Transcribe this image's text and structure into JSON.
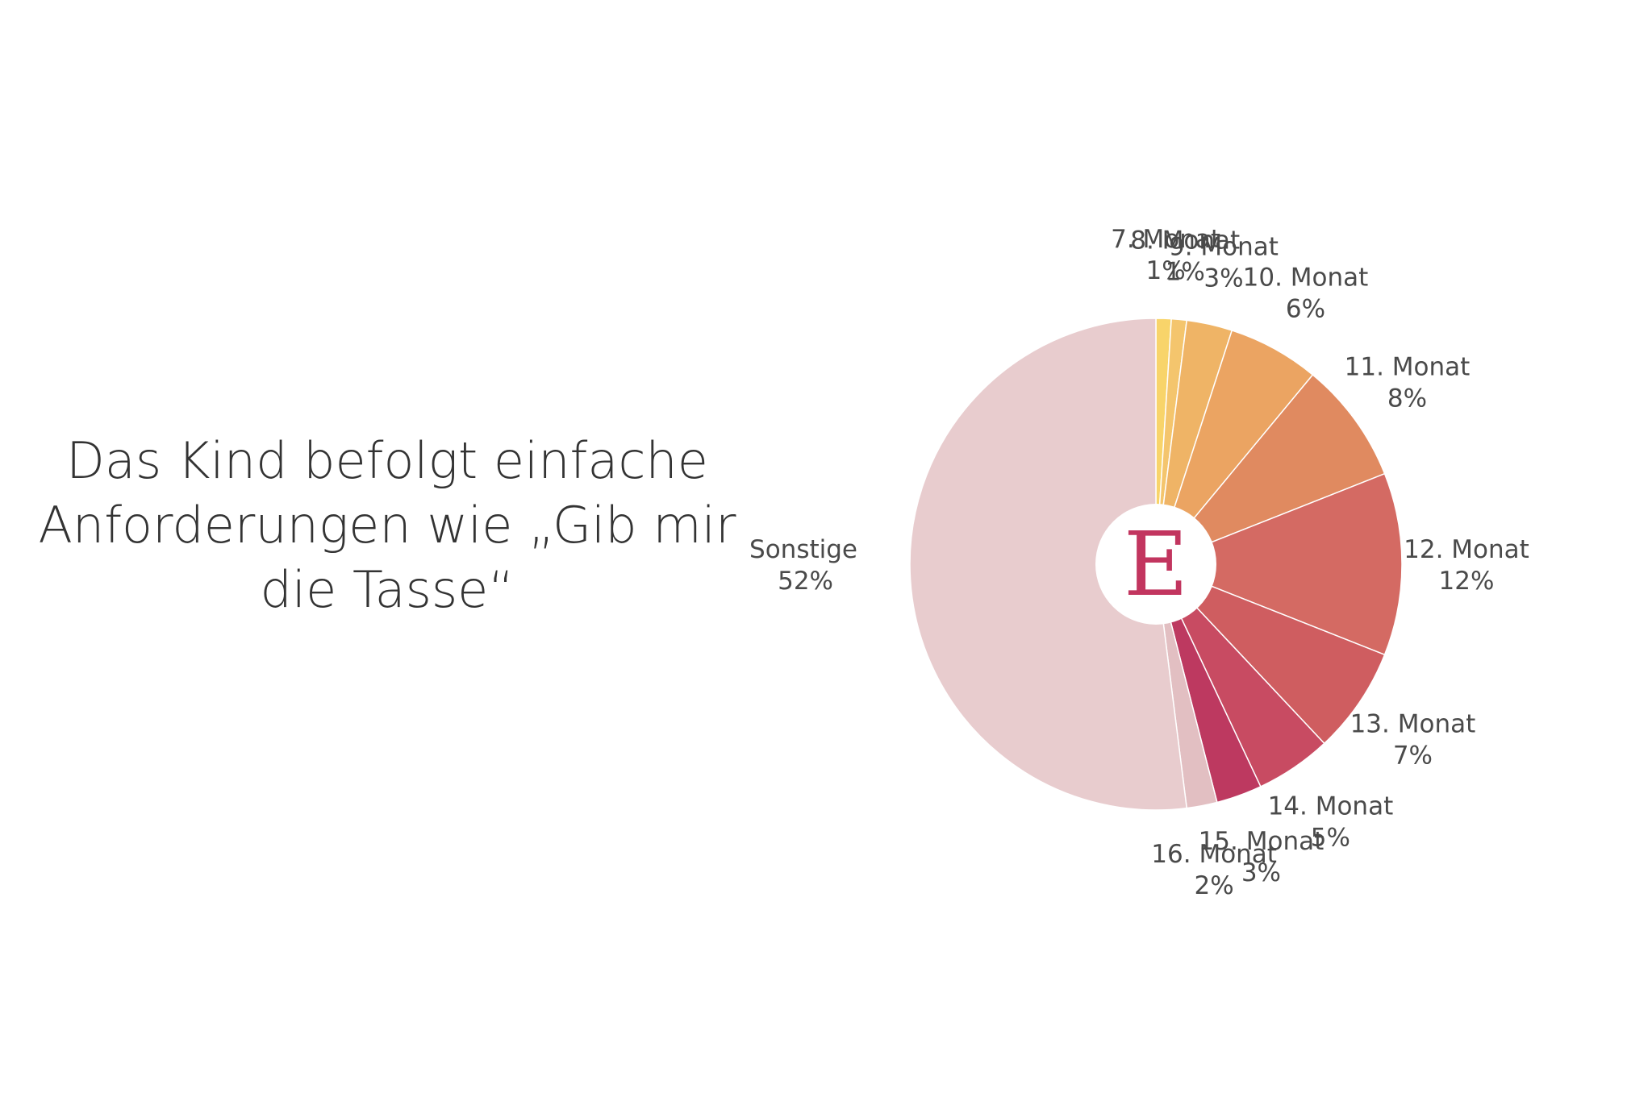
{
  "page_title_lines": [
    "Das Kind befolgt einfache",
    "Anforderungen wie „Gib mir",
    "die Tasse“"
  ],
  "logo": {
    "letter": "E",
    "color": "#c2355f"
  },
  "chart_data": {
    "type": "pie",
    "title": "Das Kind befolgt einfache Anforderungen wie „Gib mir die Tasse“",
    "start": "top, clockwise",
    "slices": [
      {
        "label": "7. Monat",
        "value": 1,
        "pct_label": "1%",
        "color": "#f8d46a"
      },
      {
        "label": "8. Monat",
        "value": 1,
        "pct_label": "1%",
        "color": "#f4c56d"
      },
      {
        "label": "9. Monat",
        "value": 3,
        "pct_label": "3%",
        "color": "#efb466"
      },
      {
        "label": "10. Monat",
        "value": 6,
        "pct_label": "6%",
        "color": "#eba462"
      },
      {
        "label": "11. Monat",
        "value": 8,
        "pct_label": "8%",
        "color": "#e08a60"
      },
      {
        "label": "12. Monat",
        "value": 12,
        "pct_label": "12%",
        "color": "#d46a63"
      },
      {
        "label": "13. Monat",
        "value": 7,
        "pct_label": "7%",
        "color": "#cf5d60"
      },
      {
        "label": "14. Monat",
        "value": 5,
        "pct_label": "5%",
        "color": "#c84b62"
      },
      {
        "label": "15. Monat",
        "value": 3,
        "pct_label": "3%",
        "color": "#bd3960"
      },
      {
        "label": "16. Monat",
        "value": 2,
        "pct_label": "2%",
        "color": "#e2bfc2"
      },
      {
        "label": "Sonstige",
        "value": 52,
        "pct_label": "52%",
        "color": "#e8ccce"
      }
    ]
  }
}
